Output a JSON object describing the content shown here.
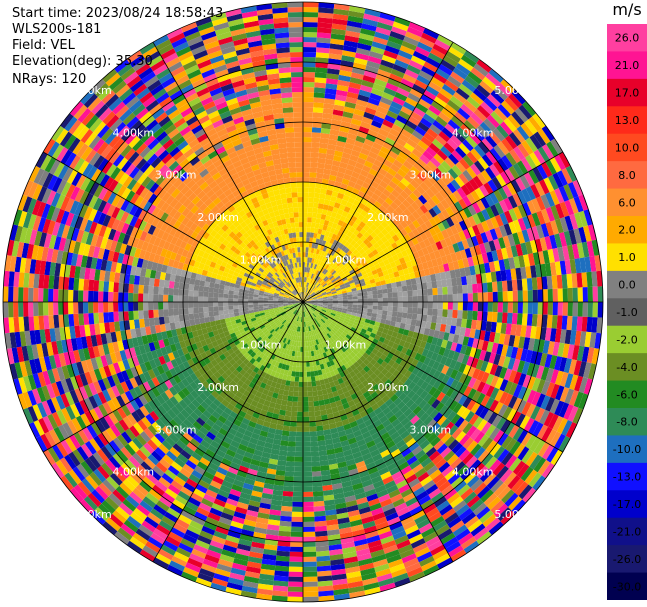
{
  "header": {
    "start_time": "Start time: 2023/08/24 18:58:43",
    "instrument": "WLS200s-181",
    "field": "Field: VEL",
    "elevation": "Elevation(deg): 35.30",
    "nrays": "NRays: 120"
  },
  "chart_data": {
    "type": "heatmap",
    "projection": "polar-ppi",
    "field": "VEL",
    "unit": "m/s",
    "nrays": 120,
    "range_rings_km": [
      1.0,
      2.0,
      3.0,
      4.0,
      5.0
    ],
    "ring_labels": {
      "r1": "1.00km",
      "r2": "2.00km",
      "r3": "3.00km",
      "r4": "4.00km",
      "r5": "5.00km"
    },
    "max_range_km": 5.0,
    "colorbar": {
      "unit_label": "m/s",
      "ticks": [
        "26.0",
        "21.0",
        "17.0",
        "13.0",
        "10.0",
        "8.0",
        "6.0",
        "2.0",
        "1.0",
        "0.0",
        "-1.0",
        "-2.0",
        "-4.0",
        "-6.0",
        "-8.0",
        "-10.0",
        "-13.0",
        "-17.0",
        "-21.0",
        "-26.0",
        "-30.0"
      ],
      "colors": [
        "#ff3fa0",
        "#ff1493",
        "#e8002a",
        "#ff2a1a",
        "#ff4a20",
        "#ff6a40",
        "#ff9030",
        "#ffaa00",
        "#ffe000",
        "#808080",
        "#606060",
        "#9acd32",
        "#6b8e23",
        "#228b22",
        "#2e8b57",
        "#1e6fbf",
        "#1010ff",
        "#0000cc",
        "#10108a",
        "#191970",
        "#000050"
      ]
    },
    "flow_pattern": "receding toward north (positive/yellow-orange), approaching from south (negative/green); noise beyond ~3km"
  }
}
